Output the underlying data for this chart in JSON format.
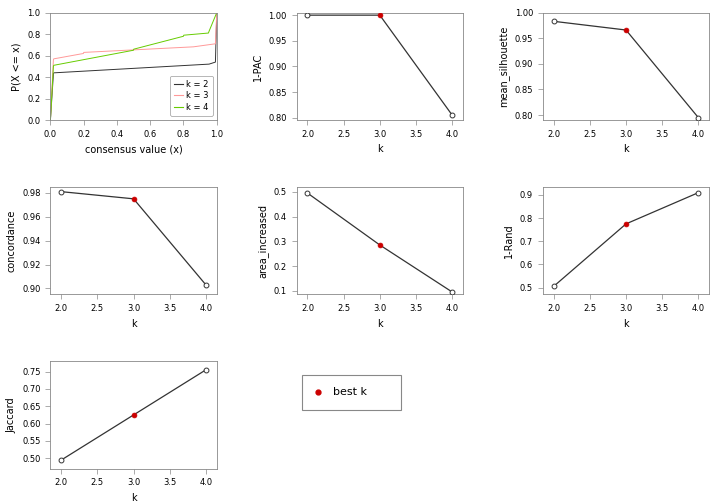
{
  "k_values": [
    2,
    3,
    4
  ],
  "pac_1minus": [
    1.0,
    1.0,
    0.805
  ],
  "mean_silhouette": [
    0.983,
    0.966,
    0.795
  ],
  "concordance": [
    0.981,
    0.975,
    0.903
  ],
  "area_increased": [
    0.495,
    0.285,
    0.095
  ],
  "rand": [
    0.505,
    0.775,
    0.91
  ],
  "jaccard": [
    0.495,
    0.625,
    0.755
  ],
  "best_k": 3,
  "ecdf_colors": {
    "2": "#333333",
    "3": "#ff9999",
    "4": "#66cc00"
  },
  "line_color": "#333333",
  "dot_closed_color": "#cc0000",
  "dot_size": 3.5,
  "font_size": 7,
  "background": "white"
}
